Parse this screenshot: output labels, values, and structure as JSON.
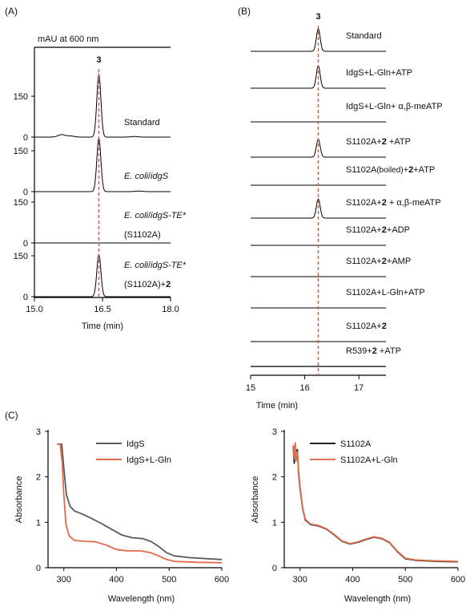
{
  "panel_labels": {
    "a": "(A)",
    "b": "(B)",
    "c": "(C)"
  },
  "colors": {
    "trace": "#000000",
    "marker": "#e05a2b",
    "idgs": "#5a5a5a",
    "idgs_gln": "#e06a4a",
    "s1102a": "#222222",
    "s1102a_gln": "#e07050"
  },
  "chart_data": [
    {
      "id": "A",
      "type": "line",
      "unit_label": "mAU at 600 nm",
      "xlabel": "Time (min)",
      "xlim": [
        15.0,
        18.0
      ],
      "xticks": [
        "15.0",
        "16.5",
        "18.0"
      ],
      "peak_label": "3",
      "peak_x": 16.42,
      "series": [
        {
          "name_parts": [
            [
              "Standard",
              "n"
            ]
          ],
          "peak": 230,
          "minor_peaks": [
            [
              15.6,
              9
            ],
            [
              15.8,
              4
            ],
            [
              17.2,
              2
            ]
          ],
          "yticks": [
            "0",
            "150"
          ]
        },
        {
          "name_parts": [
            [
              "E. coli",
              "i"
            ],
            [
              "/",
              "n"
            ],
            [
              "idgS",
              "i"
            ]
          ],
          "peak": 195,
          "minor_peaks": [
            [
              17.3,
              2
            ]
          ],
          "yticks": [
            "0",
            "150"
          ]
        },
        {
          "name_parts": [
            [
              "E. coli",
              "i"
            ],
            [
              "/",
              "n"
            ],
            [
              "idgS-TE*",
              "i"
            ]
          ],
          "name_line2": [
            [
              "(S1102A)",
              "n"
            ]
          ],
          "peak": 0,
          "minor_peaks": [],
          "yticks": [
            "0",
            "150"
          ]
        },
        {
          "name_parts": [
            [
              "E. coli",
              "i"
            ],
            [
              "/",
              "n"
            ],
            [
              "idgS-TE*",
              "i"
            ]
          ],
          "name_line2": [
            [
              "(S1102A)+",
              "n"
            ],
            [
              "2",
              "b"
            ]
          ],
          "peak": 155,
          "minor_peaks": [],
          "yticks": [
            "0",
            "150"
          ]
        }
      ]
    },
    {
      "id": "B",
      "type": "line",
      "xlabel": "Time (min)",
      "xlim": [
        15.0,
        17.5
      ],
      "xticks": [
        "15",
        "16",
        "17"
      ],
      "peak_label": "3",
      "peak_x": 16.25,
      "series": [
        {
          "name_parts": [
            [
              "Standard",
              "n"
            ]
          ],
          "peak": 1.0
        },
        {
          "name_parts": [
            [
              "IdgS+L-Gln+ATP",
              "n"
            ]
          ],
          "peak": 1.0
        },
        {
          "name_parts": [
            [
              "IdgS+L-Gln+ α,β-meATP",
              "n"
            ]
          ],
          "peak": 0
        },
        {
          "name_parts": [
            [
              "S1102A+",
              "n"
            ],
            [
              "2",
              "b"
            ],
            [
              " +ATP",
              "n"
            ]
          ],
          "peak": 0.8
        },
        {
          "name_parts": [
            [
              "S1102A",
              "n"
            ],
            [
              "(boiled)",
              "s"
            ],
            [
              "+",
              "n"
            ],
            [
              "2",
              "b"
            ],
            [
              "+ATP",
              "n"
            ]
          ],
          "peak": 0
        },
        {
          "name_parts": [
            [
              "S1102A+",
              "n"
            ],
            [
              "2",
              "b"
            ],
            [
              " + α,β-meATP",
              "n"
            ]
          ],
          "peak": 0.85
        },
        {
          "name_parts": [
            [
              "S1102A+",
              "n"
            ],
            [
              "2",
              "b"
            ],
            [
              "+ADP",
              "n"
            ]
          ],
          "peak": 0
        },
        {
          "name_parts": [
            [
              "S1102A+",
              "n"
            ],
            [
              "2",
              "b"
            ],
            [
              "+AMP",
              "n"
            ]
          ],
          "peak": 0
        },
        {
          "name_parts": [
            [
              "S1102A+L-Gln+ATP",
              "n"
            ]
          ],
          "peak": 0
        },
        {
          "name_parts": [
            [
              "S1102A+",
              "n"
            ],
            [
              "2",
              "b"
            ]
          ],
          "peak": 0
        },
        {
          "name_parts": [
            [
              "R539+",
              "n"
            ],
            [
              "2",
              "b"
            ],
            [
              " +ATP",
              "n"
            ]
          ],
          "peak": 0
        }
      ]
    },
    {
      "id": "C-left",
      "type": "line",
      "xlabel": "Wavelength (nm)",
      "ylabel": "Absorbance",
      "xlim": [
        270,
        600
      ],
      "ylim": [
        0,
        3
      ],
      "xticks": [
        300,
        400,
        500,
        600
      ],
      "yticks": [
        0,
        1,
        2,
        3
      ],
      "legend": "top-right",
      "series": [
        {
          "name": "IdgS",
          "color_key": "idgs",
          "points": [
            [
              287,
              2.72
            ],
            [
              296,
              2.72
            ],
            [
              300,
              2.2
            ],
            [
              305,
              1.6
            ],
            [
              312,
              1.35
            ],
            [
              320,
              1.25
            ],
            [
              335,
              1.18
            ],
            [
              350,
              1.1
            ],
            [
              370,
              0.98
            ],
            [
              390,
              0.85
            ],
            [
              410,
              0.72
            ],
            [
              430,
              0.66
            ],
            [
              450,
              0.64
            ],
            [
              465,
              0.58
            ],
            [
              480,
              0.47
            ],
            [
              495,
              0.33
            ],
            [
              510,
              0.26
            ],
            [
              540,
              0.22
            ],
            [
              570,
              0.2
            ],
            [
              600,
              0.18
            ]
          ]
        },
        {
          "name": "IdgS+L-Gln",
          "color_key": "idgs_gln",
          "points": [
            [
              287,
              2.72
            ],
            [
              293,
              2.72
            ],
            [
              297,
              2.3
            ],
            [
              300,
              1.6
            ],
            [
              304,
              0.95
            ],
            [
              310,
              0.7
            ],
            [
              320,
              0.6
            ],
            [
              340,
              0.58
            ],
            [
              360,
              0.57
            ],
            [
              380,
              0.5
            ],
            [
              400,
              0.4
            ],
            [
              420,
              0.37
            ],
            [
              445,
              0.37
            ],
            [
              465,
              0.33
            ],
            [
              480,
              0.26
            ],
            [
              495,
              0.18
            ],
            [
              510,
              0.14
            ],
            [
              550,
              0.12
            ],
            [
              600,
              0.11
            ]
          ]
        }
      ]
    },
    {
      "id": "C-right",
      "type": "line",
      "xlabel": "Wavelength (nm)",
      "ylabel": "Absorbance",
      "xlim": [
        270,
        600
      ],
      "ylim": [
        0,
        3
      ],
      "xticks": [
        300,
        400,
        500,
        600
      ],
      "yticks": [
        0,
        1,
        2,
        3
      ],
      "legend": "top-right",
      "series": [
        {
          "name": "S1102A",
          "color_key": "s1102a",
          "points": [
            [
              287,
              2.65
            ],
            [
              289,
              2.3
            ],
            [
              291,
              2.7
            ],
            [
              293,
              2.4
            ],
            [
              295,
              2.6
            ],
            [
              297,
              2.1
            ],
            [
              300,
              1.75
            ],
            [
              305,
              1.3
            ],
            [
              310,
              1.05
            ],
            [
              320,
              0.95
            ],
            [
              335,
              0.92
            ],
            [
              350,
              0.85
            ],
            [
              365,
              0.72
            ],
            [
              380,
              0.58
            ],
            [
              395,
              0.52
            ],
            [
              410,
              0.56
            ],
            [
              425,
              0.62
            ],
            [
              440,
              0.67
            ],
            [
              455,
              0.64
            ],
            [
              470,
              0.55
            ],
            [
              485,
              0.35
            ],
            [
              500,
              0.2
            ],
            [
              520,
              0.16
            ],
            [
              560,
              0.14
            ],
            [
              600,
              0.13
            ]
          ]
        },
        {
          "name": "S1102A+L-Gln",
          "color_key": "s1102a_gln",
          "points": [
            [
              287,
              2.7
            ],
            [
              289,
              2.4
            ],
            [
              291,
              2.75
            ],
            [
              293,
              2.35
            ],
            [
              295,
              2.55
            ],
            [
              297,
              2.15
            ],
            [
              300,
              1.8
            ],
            [
              305,
              1.32
            ],
            [
              310,
              1.07
            ],
            [
              320,
              0.96
            ],
            [
              335,
              0.93
            ],
            [
              350,
              0.86
            ],
            [
              365,
              0.73
            ],
            [
              380,
              0.59
            ],
            [
              395,
              0.53
            ],
            [
              410,
              0.57
            ],
            [
              425,
              0.63
            ],
            [
              440,
              0.68
            ],
            [
              455,
              0.65
            ],
            [
              470,
              0.56
            ],
            [
              485,
              0.36
            ],
            [
              500,
              0.21
            ],
            [
              520,
              0.17
            ],
            [
              560,
              0.15
            ],
            [
              600,
              0.14
            ]
          ]
        }
      ]
    }
  ]
}
